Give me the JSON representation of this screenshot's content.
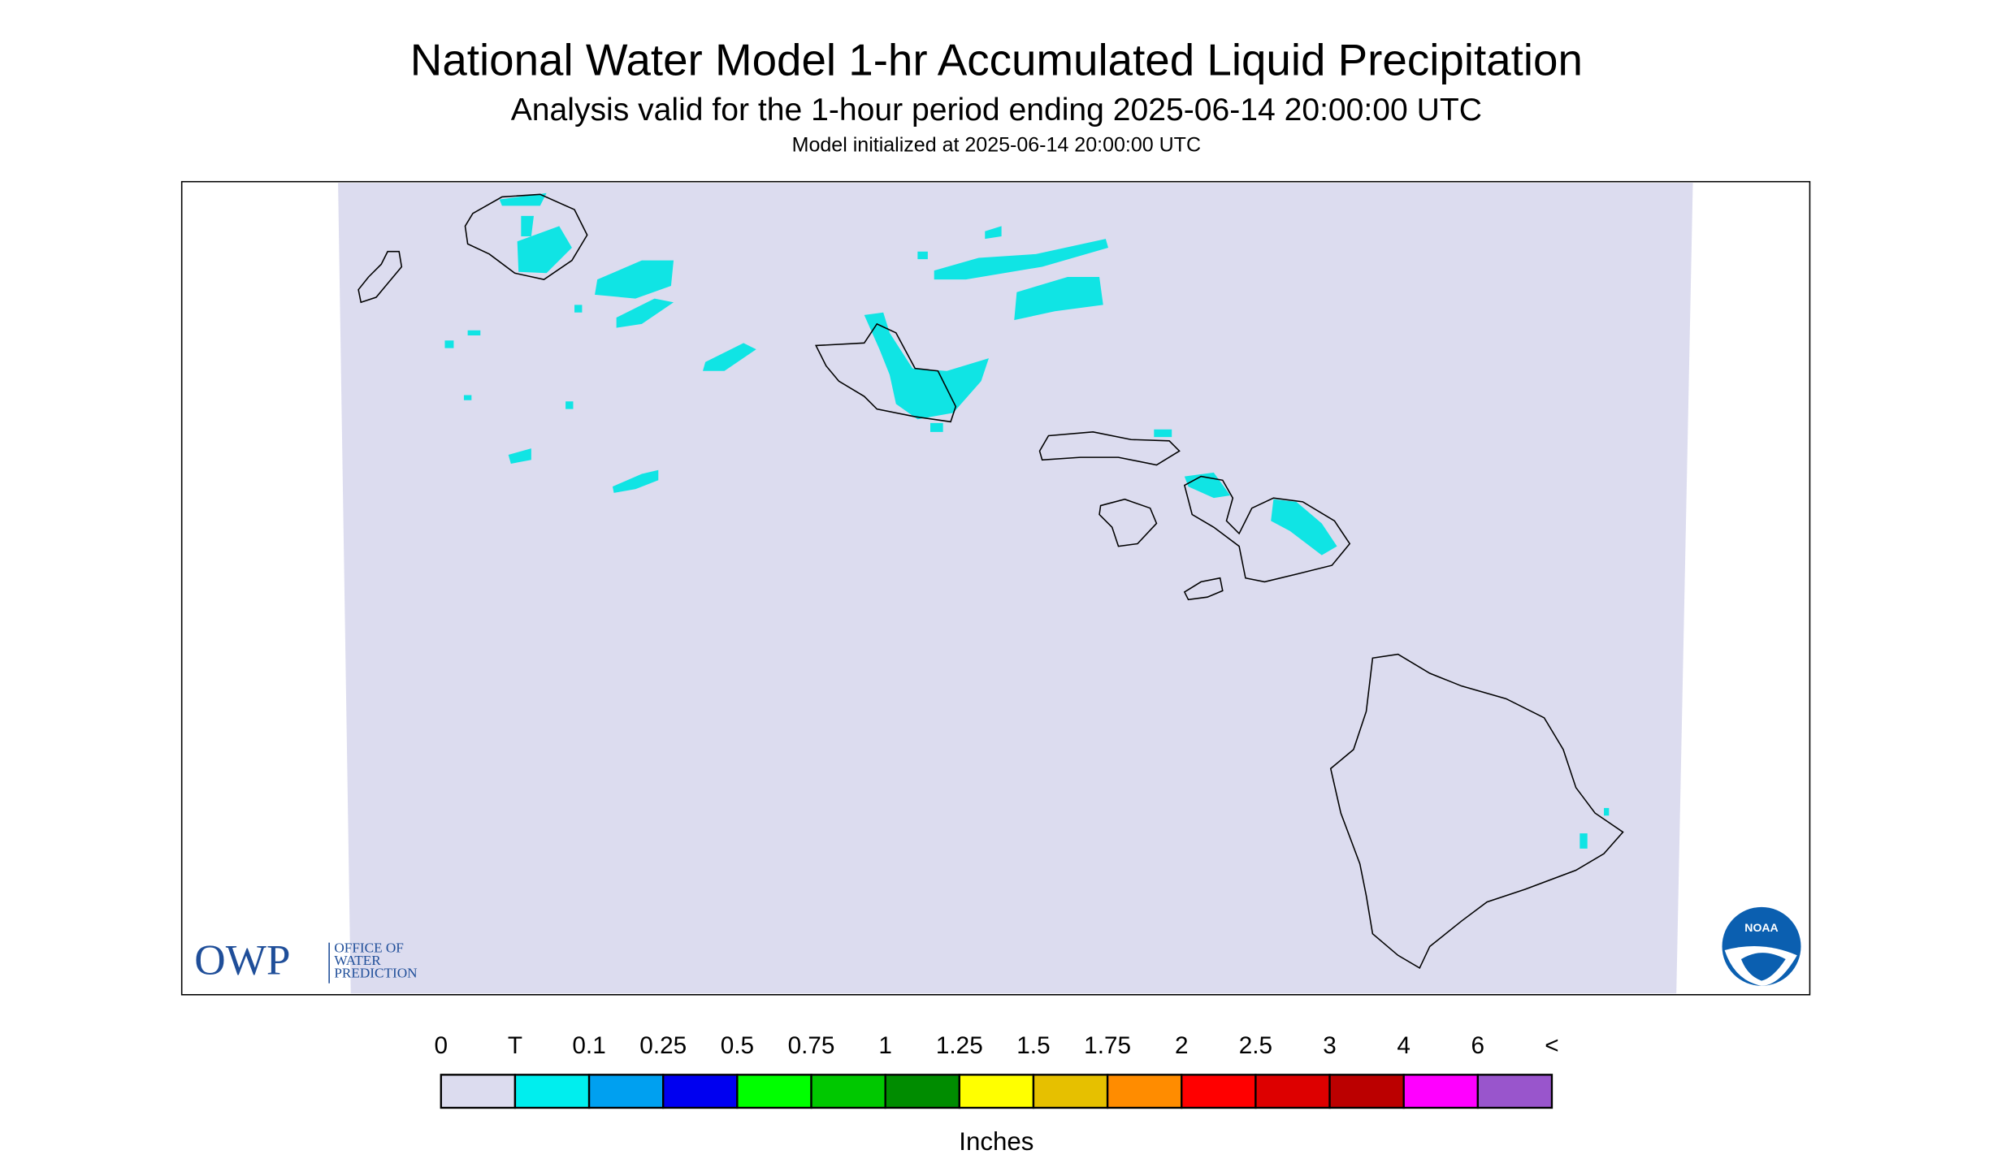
{
  "header": {
    "title": "National Water Model 1-hr Accumulated Liquid Precipitation",
    "subtitle": "Analysis valid for the 1-hour period ending 2025-06-14 20:00:00 UTC",
    "note": "Model initialized at 2025-06-14 20:00:00 UTC"
  },
  "legend": {
    "labels": [
      "0",
      "T",
      "0.1",
      "0.25",
      "0.5",
      "0.75",
      "1",
      "1.25",
      "1.5",
      "1.75",
      "2",
      "2.5",
      "3",
      "4",
      "6",
      "<"
    ],
    "colors": [
      "#dcdcef",
      "#00eeee",
      "#00a0f0",
      "#0000f0",
      "#00ff00",
      "#00c800",
      "#008c00",
      "#ffff00",
      "#e6c000",
      "#ff8c00",
      "#ff0000",
      "#dd0000",
      "#bb0000",
      "#ff00ff",
      "#9955cc"
    ],
    "unit": "Inches"
  },
  "logos": {
    "owp": "OWP",
    "owp_lines": [
      "OFFICE OF",
      "WATER",
      "PREDICTION"
    ],
    "noaa": "NOAA"
  }
}
